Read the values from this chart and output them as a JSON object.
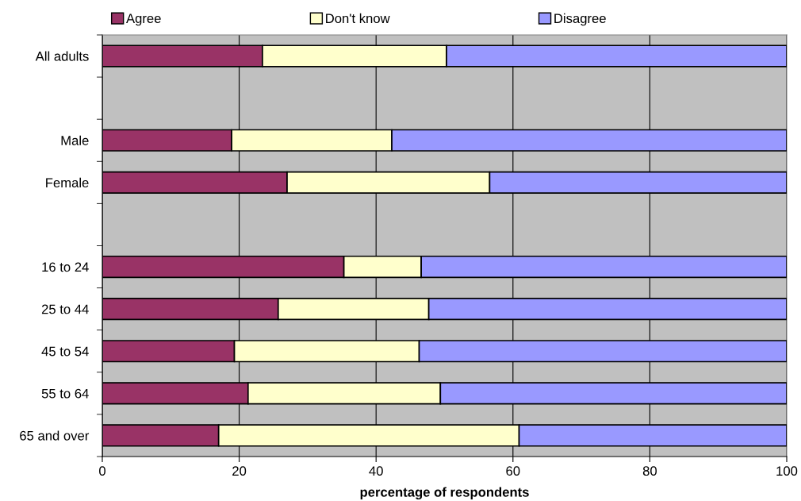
{
  "chart_data": {
    "type": "bar",
    "orientation": "horizontal",
    "stacked": true,
    "xlabel": "percentage of respondents",
    "categories": [
      "All adults",
      null,
      "Male",
      "Female",
      null,
      "16 to 24",
      "25 to 44",
      "45 to 54",
      "55 to 64",
      "65 and over"
    ],
    "series": [
      {
        "name": "Agree",
        "color": "#993366",
        "values": [
          23.4,
          null,
          18.9,
          27.0,
          null,
          35.3,
          25.7,
          19.3,
          21.3,
          17.0
        ]
      },
      {
        "name": "Don't know",
        "color": "#ffffcc",
        "values": [
          26.9,
          null,
          23.4,
          29.6,
          null,
          11.3,
          22.0,
          27.0,
          28.1,
          43.9
        ]
      },
      {
        "name": "Disagree",
        "color": "#9999ff",
        "values": [
          49.7,
          null,
          57.7,
          43.4,
          null,
          53.4,
          52.3,
          53.7,
          50.6,
          39.1
        ]
      }
    ],
    "xlim": [
      0,
      100
    ],
    "xticks": [
      0,
      20,
      40,
      60,
      80,
      100
    ],
    "grid": "x",
    "legend": "top"
  }
}
